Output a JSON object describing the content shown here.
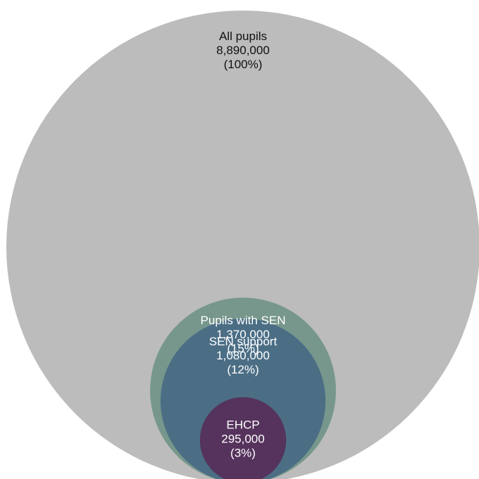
{
  "chart_data": {
    "type": "nested-circle",
    "title": "",
    "series": [
      {
        "name": "All pupils",
        "value": 8890000,
        "value_label": "8,890,000",
        "percent_label": "(100%)",
        "color": "#bbbcbb",
        "text_color": "#111111"
      },
      {
        "name": "Pupils with SEN",
        "value": 1370000,
        "value_label": "1,370,000",
        "percent_label": "(15%)",
        "color": "#77978c",
        "text_color": "#ffffff"
      },
      {
        "name": "SEN support",
        "value": 1080000,
        "value_label": "1,080,000",
        "percent_label": "(12%)",
        "color": "#4b6e85",
        "text_color": "#ffffff"
      },
      {
        "name": "EHCP",
        "value": 295000,
        "value_label": "295,000",
        "percent_label": "(3%)",
        "color": "#55335c",
        "text_color": "#ffffff"
      }
    ]
  }
}
